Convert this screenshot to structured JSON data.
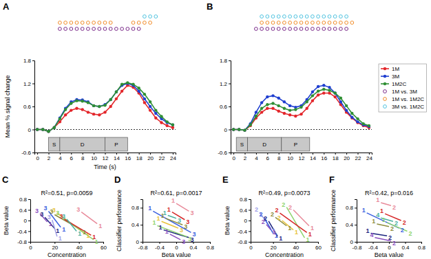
{
  "chart_data": [
    {
      "type": "line",
      "title": "A",
      "xlabel": "Time (s)",
      "ylabel": "Mean % signal change",
      "x": [
        0,
        1,
        2,
        3,
        4,
        5,
        6,
        7,
        8,
        9,
        10,
        11,
        12,
        13,
        14,
        15,
        16,
        17,
        18,
        19,
        20,
        21,
        22,
        23,
        24
      ],
      "xlim": [
        -0.5,
        24.5
      ],
      "xticks": [
        0,
        2,
        4,
        6,
        8,
        10,
        12,
        14,
        16,
        18,
        20,
        22,
        24
      ],
      "ylim": [
        -0.6,
        1.8
      ],
      "yticks": [
        -0.6,
        0,
        0.6,
        1.2,
        1.8
      ],
      "marker": "circle",
      "legend": "right",
      "hline": 0,
      "series": [
        {
          "name": "1M",
          "color": "#e3262b",
          "values": [
            0,
            0,
            -0.05,
            0.05,
            0.2,
            0.38,
            0.5,
            0.55,
            0.52,
            0.45,
            0.4,
            0.38,
            0.45,
            0.6,
            0.8,
            1.0,
            1.15,
            1.1,
            0.95,
            0.7,
            0.5,
            0.3,
            0.18,
            0.1,
            0.05
          ]
        },
        {
          "name": "3M",
          "color": "#1f3fd0",
          "values": [
            0,
            0,
            -0.05,
            0.05,
            0.3,
            0.55,
            0.72,
            0.78,
            0.77,
            0.72,
            0.62,
            0.6,
            0.65,
            0.78,
            0.98,
            1.15,
            1.2,
            1.15,
            1.0,
            0.8,
            0.6,
            0.42,
            0.28,
            0.18,
            0.12
          ]
        },
        {
          "name": "1M2C",
          "color": "#2f8f34",
          "values": [
            0,
            0,
            -0.05,
            0.05,
            0.28,
            0.52,
            0.68,
            0.75,
            0.74,
            0.7,
            0.62,
            0.6,
            0.63,
            0.78,
            0.98,
            1.18,
            1.22,
            1.18,
            1.08,
            0.92,
            0.72,
            0.5,
            0.34,
            0.2,
            0.12
          ]
        }
      ],
      "significance": [
        {
          "name": "1M vs. 3M",
          "color": "#7b2a8a",
          "times": [
            4,
            5,
            6,
            7,
            8,
            9,
            10,
            11,
            12,
            13,
            14,
            15,
            16,
            17,
            18
          ]
        },
        {
          "name": "1M vs. 1M2C",
          "color": "#f28c28",
          "times": [
            4,
            5,
            6,
            7,
            8,
            9,
            10,
            11,
            12,
            13,
            17,
            18,
            19,
            20
          ]
        },
        {
          "name": "3M vs. 1M2C",
          "color": "#4fc3e0",
          "times": [
            19,
            20,
            21
          ]
        }
      ],
      "annotations": [
        {
          "text": "S",
          "x": [
            2,
            4
          ]
        },
        {
          "text": "D",
          "x": [
            4,
            12
          ]
        },
        {
          "text": "P",
          "x": [
            12,
            16
          ]
        }
      ]
    },
    {
      "type": "line",
      "title": "B",
      "x": [
        0,
        1,
        2,
        3,
        4,
        5,
        6,
        7,
        8,
        9,
        10,
        11,
        12,
        13,
        14,
        15,
        16,
        17,
        18,
        19,
        20,
        21,
        22,
        23,
        24
      ],
      "xlim": [
        -0.5,
        24.5
      ],
      "xticks": [
        0,
        2,
        4,
        6,
        8,
        10,
        12,
        14,
        16,
        18,
        20,
        22,
        24
      ],
      "ylim": [
        -0.6,
        1.8
      ],
      "yticks": [
        -0.6,
        0,
        0.6,
        1.2,
        1.8
      ],
      "marker": "circle",
      "hline": 0,
      "series": [
        {
          "color": "#e3262b",
          "values": [
            0,
            0,
            -0.02,
            0.1,
            0.3,
            0.45,
            0.55,
            0.55,
            0.48,
            0.42,
            0.38,
            0.35,
            0.4,
            0.55,
            0.75,
            0.9,
            0.95,
            0.95,
            0.85,
            0.65,
            0.45,
            0.3,
            0.18,
            0.1,
            0.05
          ]
        },
        {
          "color": "#1f3fd0",
          "values": [
            0,
            0,
            -0.02,
            0.15,
            0.45,
            0.7,
            0.85,
            0.88,
            0.82,
            0.72,
            0.62,
            0.58,
            0.62,
            0.78,
            0.98,
            1.12,
            1.15,
            1.1,
            0.95,
            0.72,
            0.5,
            0.32,
            0.2,
            0.12,
            0.08
          ]
        },
        {
          "color": "#2f8f34",
          "values": [
            0,
            0,
            -0.02,
            0.12,
            0.35,
            0.55,
            0.65,
            0.68,
            0.62,
            0.55,
            0.5,
            0.52,
            0.58,
            0.72,
            0.88,
            1.0,
            1.05,
            1.02,
            0.95,
            0.82,
            0.62,
            0.42,
            0.28,
            0.15,
            0.1
          ]
        }
      ],
      "significance": [
        {
          "color": "#7b2a8a",
          "times": [
            4,
            5,
            6,
            7,
            8,
            9,
            10,
            11,
            12,
            13,
            14,
            15,
            16,
            17,
            18,
            19,
            20
          ]
        },
        {
          "color": "#f28c28",
          "times": [
            5,
            6,
            7,
            8,
            9,
            10,
            11,
            12,
            13,
            14,
            15,
            16,
            17,
            18,
            19,
            20,
            21
          ]
        },
        {
          "color": "#4fc3e0",
          "times": [
            5,
            6,
            7,
            8,
            9,
            10,
            11,
            12,
            13,
            14,
            15,
            16,
            17,
            18,
            19,
            20
          ]
        }
      ],
      "annotations": [
        {
          "text": "S",
          "x": [
            0.5,
            2.5
          ]
        },
        {
          "text": "D",
          "x": [
            2.5,
            8.5
          ]
        },
        {
          "text": "P",
          "x": [
            8.5,
            13.5
          ]
        }
      ]
    },
    {
      "type": "line",
      "title": "C",
      "xlabel": "Concentration",
      "ylabel": "Beta value",
      "annotation": "R²=0.51, p=0.0059",
      "xlim": [
        0,
        60
      ],
      "xticks": [
        0,
        20,
        40,
        60
      ],
      "ylim": [
        -0.8,
        0.8
      ],
      "yticks": [
        -0.8,
        -0.4,
        0,
        0.4,
        0.8
      ],
      "series": [
        {
          "color": "#e88a9a",
          "x": [
            42,
            55
          ],
          "values": [
            0.32,
            -0.12
          ],
          "labels": [
            "3",
            "1"
          ]
        },
        {
          "color": "#e8c23a",
          "x": [
            22,
            45
          ],
          "values": [
            0.28,
            -0.5
          ],
          "labels": [
            "3",
            "1"
          ]
        },
        {
          "color": "#8c8c3a",
          "x": [
            20,
            42
          ],
          "values": [
            0.22,
            -0.35
          ],
          "labels": [
            "3",
            "1"
          ]
        },
        {
          "color": "#8fd46e",
          "x": [
            25,
            52
          ],
          "values": [
            0.18,
            -0.72
          ],
          "labels": [
            "3",
            "1"
          ]
        },
        {
          "color": "#d62728",
          "x": [
            28,
            50
          ],
          "values": [
            0.05,
            -0.55
          ],
          "labels": [
            "3",
            "1"
          ]
        },
        {
          "color": "#3a5fe0",
          "x": [
            15,
            25
          ],
          "values": [
            0.35,
            -0.25
          ],
          "labels": [
            "3",
            "1"
          ]
        },
        {
          "color": "#1a237e",
          "x": [
            12,
            20
          ],
          "values": [
            0.12,
            -0.3
          ],
          "labels": [
            "3",
            "1"
          ]
        },
        {
          "color": "#8a4fbf",
          "x": [
            8,
            14
          ],
          "values": [
            0.25,
            -0.05
          ],
          "labels": [
            "3",
            "1"
          ]
        },
        {
          "color": "#9e9ee8",
          "x": [
            18,
            22
          ],
          "values": [
            0.02,
            -0.6
          ],
          "labels": [
            "3",
            "1"
          ]
        },
        {
          "color": "#4ab0a0",
          "x": [
            30,
            38
          ],
          "values": [
            0.05,
            -0.4
          ],
          "labels": [
            "3",
            "1"
          ]
        }
      ]
    },
    {
      "type": "line",
      "title": "D",
      "xlabel": "Beta value",
      "ylabel": "Classifier performance",
      "annotation": "R²=0.61, p=0.0017",
      "xlim": [
        -0.8,
        0.8
      ],
      "xticks": [
        -0.8,
        -0.4,
        0,
        0.4,
        0.8
      ],
      "ylim": [
        0,
        1
      ],
      "yticks": [
        0,
        0.4,
        0.8
      ],
      "series": [
        {
          "color": "#e88a9a",
          "x": [
            0.0,
            0.3
          ],
          "values": [
            0.9,
            0.72
          ],
          "labels": [
            "1",
            "3"
          ]
        },
        {
          "color": "#d62728",
          "x": [
            -0.1,
            0.2
          ],
          "values": [
            0.7,
            0.52
          ],
          "labels": [
            "1",
            "3"
          ]
        },
        {
          "color": "#3a5fe0",
          "x": [
            -0.55,
            0.35
          ],
          "values": [
            0.72,
            0.22
          ],
          "labels": [
            "1",
            "3"
          ]
        },
        {
          "color": "#1a237e",
          "x": [
            -0.3,
            0.3
          ],
          "values": [
            0.28,
            0.1
          ],
          "labels": [
            "1",
            "3"
          ]
        },
        {
          "color": "#8c8c3a",
          "x": [
            -0.25,
            0.15
          ],
          "values": [
            0.55,
            0.4
          ],
          "labels": [
            "1",
            "3"
          ]
        },
        {
          "color": "#e8c23a",
          "x": [
            -0.35,
            0.05
          ],
          "values": [
            0.48,
            0.32
          ],
          "labels": [
            "1",
            "3"
          ]
        },
        {
          "color": "#8fd46e",
          "x": [
            -0.45,
            0.25
          ],
          "values": [
            0.38,
            0.12
          ],
          "labels": [
            "1",
            "3"
          ]
        },
        {
          "color": "#4ab0a0",
          "x": [
            -0.2,
            0.0
          ],
          "values": [
            0.62,
            0.55
          ],
          "labels": [
            "1",
            "3"
          ]
        },
        {
          "color": "#8a4fbf",
          "x": [
            -0.15,
            0.1
          ],
          "values": [
            0.18,
            0.05
          ],
          "labels": [
            "1",
            "3"
          ]
        }
      ]
    },
    {
      "type": "line",
      "title": "E",
      "xlabel": "Concentration",
      "ylabel": "Beta value",
      "annotation": "R²=0.49, p=0.0073",
      "xlim": [
        0,
        60
      ],
      "xticks": [
        0,
        20,
        40,
        60
      ],
      "ylim": [
        -0.8,
        0.8
      ],
      "yticks": [
        -0.8,
        -0.4,
        0,
        0.4,
        0.8
      ],
      "series": [
        {
          "color": "#e88a9a",
          "x": [
            38,
            52
          ],
          "values": [
            0.4,
            -0.2
          ],
          "labels": [
            "2",
            "1"
          ]
        },
        {
          "color": "#8fd46e",
          "x": [
            32,
            48
          ],
          "values": [
            0.5,
            -0.65
          ],
          "labels": [
            "2",
            "1"
          ]
        },
        {
          "color": "#d62728",
          "x": [
            26,
            50
          ],
          "values": [
            0.28,
            -0.45
          ],
          "labels": [
            "2",
            "1"
          ]
        },
        {
          "color": "#9e9ee8",
          "x": [
            8,
            18
          ],
          "values": [
            0.3,
            -0.3
          ],
          "labels": [
            "2",
            "1"
          ]
        },
        {
          "color": "#3a5fe0",
          "x": [
            12,
            20
          ],
          "values": [
            0.12,
            -0.48
          ],
          "labels": [
            "2",
            "1"
          ]
        },
        {
          "color": "#1a237e",
          "x": [
            16,
            24
          ],
          "values": [
            -0.02,
            -0.6
          ],
          "labels": [
            "2",
            "1"
          ]
        },
        {
          "color": "#8c8c3a",
          "x": [
            22,
            32
          ],
          "values": [
            0.12,
            -0.2
          ],
          "labels": [
            "2",
            "1"
          ]
        },
        {
          "color": "#e8c23a",
          "x": [
            28,
            38
          ],
          "values": [
            0.0,
            -0.35
          ],
          "labels": [
            "2",
            "1"
          ]
        },
        {
          "color": "#8a4fbf",
          "x": [
            14,
            18
          ],
          "values": [
            -0.15,
            -0.35
          ],
          "labels": [
            "2",
            "1"
          ]
        }
      ]
    },
    {
      "type": "line",
      "title": "F",
      "xlabel": "Beta value",
      "ylabel": "Classifier performance",
      "annotation": "R²=0.42, p=0.016",
      "xlim": [
        -0.8,
        0.8
      ],
      "xticks": [
        -0.8,
        -0.4,
        0,
        0.4,
        0.8
      ],
      "ylim": [
        0,
        1
      ],
      "yticks": [
        0,
        0.4,
        0.8
      ],
      "series": [
        {
          "color": "#e88a9a",
          "x": [
            -0.2,
            0.05
          ],
          "values": [
            0.92,
            0.85
          ],
          "labels": [
            "1",
            "2"
          ]
        },
        {
          "color": "#d62728",
          "x": [
            -0.1,
            0.3
          ],
          "values": [
            0.66,
            0.5
          ],
          "labels": [
            "1",
            "2"
          ]
        },
        {
          "color": "#3a5fe0",
          "x": [
            -0.55,
            0.25
          ],
          "values": [
            0.68,
            0.32
          ],
          "labels": [
            "1",
            "2"
          ]
        },
        {
          "color": "#8fd46e",
          "x": [
            -0.05,
            0.45
          ],
          "values": [
            0.45,
            0.25
          ],
          "labels": [
            "1",
            "2"
          ]
        },
        {
          "color": "#8c8c3a",
          "x": [
            -0.3,
            0.0
          ],
          "values": [
            0.42,
            0.36
          ],
          "labels": [
            "1",
            "2"
          ]
        },
        {
          "color": "#8a4fbf",
          "x": [
            -0.35,
            0.05
          ],
          "values": [
            0.1,
            0.02
          ],
          "labels": [
            "4",
            "2"
          ]
        },
        {
          "color": "#1a237e",
          "x": [
            -0.45,
            -0.05
          ],
          "values": [
            0.2,
            0.14
          ],
          "labels": [
            "1",
            "2"
          ]
        },
        {
          "color": "#4ab0a0",
          "x": [
            -0.2,
            0.1
          ],
          "values": [
            0.56,
            0.48
          ],
          "labels": [
            "4",
            "2"
          ]
        }
      ]
    }
  ]
}
